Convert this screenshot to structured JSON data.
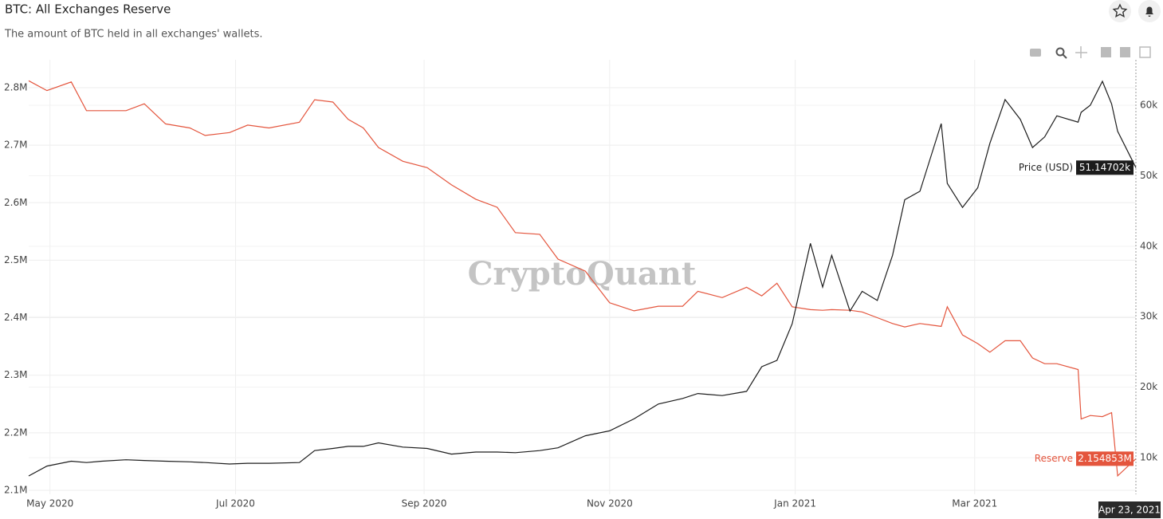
{
  "header": {
    "title": "BTC: All Exchanges Reserve",
    "subtitle": "The amount of BTC held in all exchanges' wallets.",
    "watermark": "CryptoQuant"
  },
  "chart_data": {
    "type": "line",
    "x": [
      "2020-04-24",
      "2020-04-30",
      "2020-05-08",
      "2020-05-13",
      "2020-05-18",
      "2020-05-26",
      "2020-06-01",
      "2020-06-08",
      "2020-06-16",
      "2020-06-21",
      "2020-06-29",
      "2020-07-05",
      "2020-07-12",
      "2020-07-22",
      "2020-07-27",
      "2020-08-02",
      "2020-08-07",
      "2020-08-12",
      "2020-08-17",
      "2020-08-25",
      "2020-09-02",
      "2020-09-10",
      "2020-09-18",
      "2020-09-25",
      "2020-10-01",
      "2020-10-09",
      "2020-10-15",
      "2020-10-24",
      "2020-11-01",
      "2020-11-09",
      "2020-11-17",
      "2020-11-25",
      "2020-11-30",
      "2020-12-08",
      "2020-12-16",
      "2020-12-21",
      "2020-12-26",
      "2020-12-31",
      "2021-01-06",
      "2021-01-10",
      "2021-01-13",
      "2021-01-19",
      "2021-01-23",
      "2021-01-28",
      "2021-02-02",
      "2021-02-06",
      "2021-02-11",
      "2021-02-18",
      "2021-02-20",
      "2021-02-25",
      "2021-03-02",
      "2021-03-06",
      "2021-03-11",
      "2021-03-16",
      "2021-03-20",
      "2021-03-24",
      "2021-03-28",
      "2021-04-04",
      "2021-04-05",
      "2021-04-08",
      "2021-04-12",
      "2021-04-15",
      "2021-04-17",
      "2021-04-23"
    ],
    "xlim": [
      "2020-04-24",
      "2021-04-23"
    ],
    "xticks": [
      {
        "value": "2020-05-01",
        "label": "May 2020"
      },
      {
        "value": "2020-07-01",
        "label": "Jul 2020"
      },
      {
        "value": "2020-09-01",
        "label": "Sep 2020"
      },
      {
        "value": "2020-11-01",
        "label": "Nov 2020"
      },
      {
        "value": "2021-01-01",
        "label": "Jan 2021"
      },
      {
        "value": "2021-03-01",
        "label": "Mar 2021"
      }
    ],
    "crosshair_label": "Apr 23, 2021",
    "ylim": [
      2093000,
      2848500
    ],
    "yticks": [
      {
        "value": 2100000,
        "label": "2.1M"
      },
      {
        "value": 2200000,
        "label": "2.2M"
      },
      {
        "value": 2300000,
        "label": "2.3M"
      },
      {
        "value": 2400000,
        "label": "2.4M"
      },
      {
        "value": 2500000,
        "label": "2.5M"
      },
      {
        "value": 2600000,
        "label": "2.6M"
      },
      {
        "value": 2700000,
        "label": "2.7M"
      },
      {
        "value": 2800000,
        "label": "2.8M"
      }
    ],
    "y2lim": [
      4800,
      66450
    ],
    "y2ticks": [
      {
        "value": 10000,
        "label": "10k"
      },
      {
        "value": 20000,
        "label": "20k"
      },
      {
        "value": 30000,
        "label": "30k"
      },
      {
        "value": 40000,
        "label": "40k"
      },
      {
        "value": 50000,
        "label": "50k"
      },
      {
        "value": 60000,
        "label": "60k"
      }
    ],
    "grid": true,
    "series": [
      {
        "name": "Reserve",
        "color": "#e4553d",
        "axis": "y",
        "last_value_label": "2.154853M",
        "values": [
          2812000,
          2795000,
          2810000,
          2760000,
          2760000,
          2760000,
          2772000,
          2737000,
          2730000,
          2717000,
          2722000,
          2735000,
          2730000,
          2740000,
          2779000,
          2775000,
          2745000,
          2730000,
          2696000,
          2672000,
          2661000,
          2631000,
          2606000,
          2592000,
          2548000,
          2545000,
          2502000,
          2481000,
          2426000,
          2412000,
          2420000,
          2420000,
          2446000,
          2435000,
          2453000,
          2438000,
          2460000,
          2419000,
          2414000,
          2413000,
          2414000,
          2413000,
          2410000,
          2400000,
          2390000,
          2384000,
          2390000,
          2385000,
          2419000,
          2370000,
          2355000,
          2340000,
          2360000,
          2360000,
          2330000,
          2320000,
          2320000,
          2310000,
          2224000,
          2230000,
          2228000,
          2235000,
          2125000,
          2154853
        ]
      },
      {
        "name": "Price (USD)",
        "color": "#1c1c1c",
        "axis": "y2",
        "last_value_label": "51.14702k",
        "values": [
          7400,
          8800,
          9500,
          9300,
          9500,
          9700,
          9600,
          9500,
          9400,
          9300,
          9100,
          9200,
          9200,
          9300,
          11000,
          11300,
          11600,
          11600,
          12100,
          11500,
          11300,
          10500,
          10800,
          10800,
          10700,
          11000,
          11400,
          13100,
          13800,
          15500,
          17600,
          18400,
          19100,
          18800,
          19400,
          22900,
          23800,
          29000,
          40400,
          34200,
          38700,
          30800,
          33600,
          32300,
          38700,
          46600,
          47800,
          57400,
          48900,
          45500,
          48300,
          54600,
          60800,
          58000,
          54000,
          55500,
          58500,
          57600,
          59000,
          60000,
          63400,
          60200,
          56300,
          51147.02
        ]
      }
    ]
  }
}
